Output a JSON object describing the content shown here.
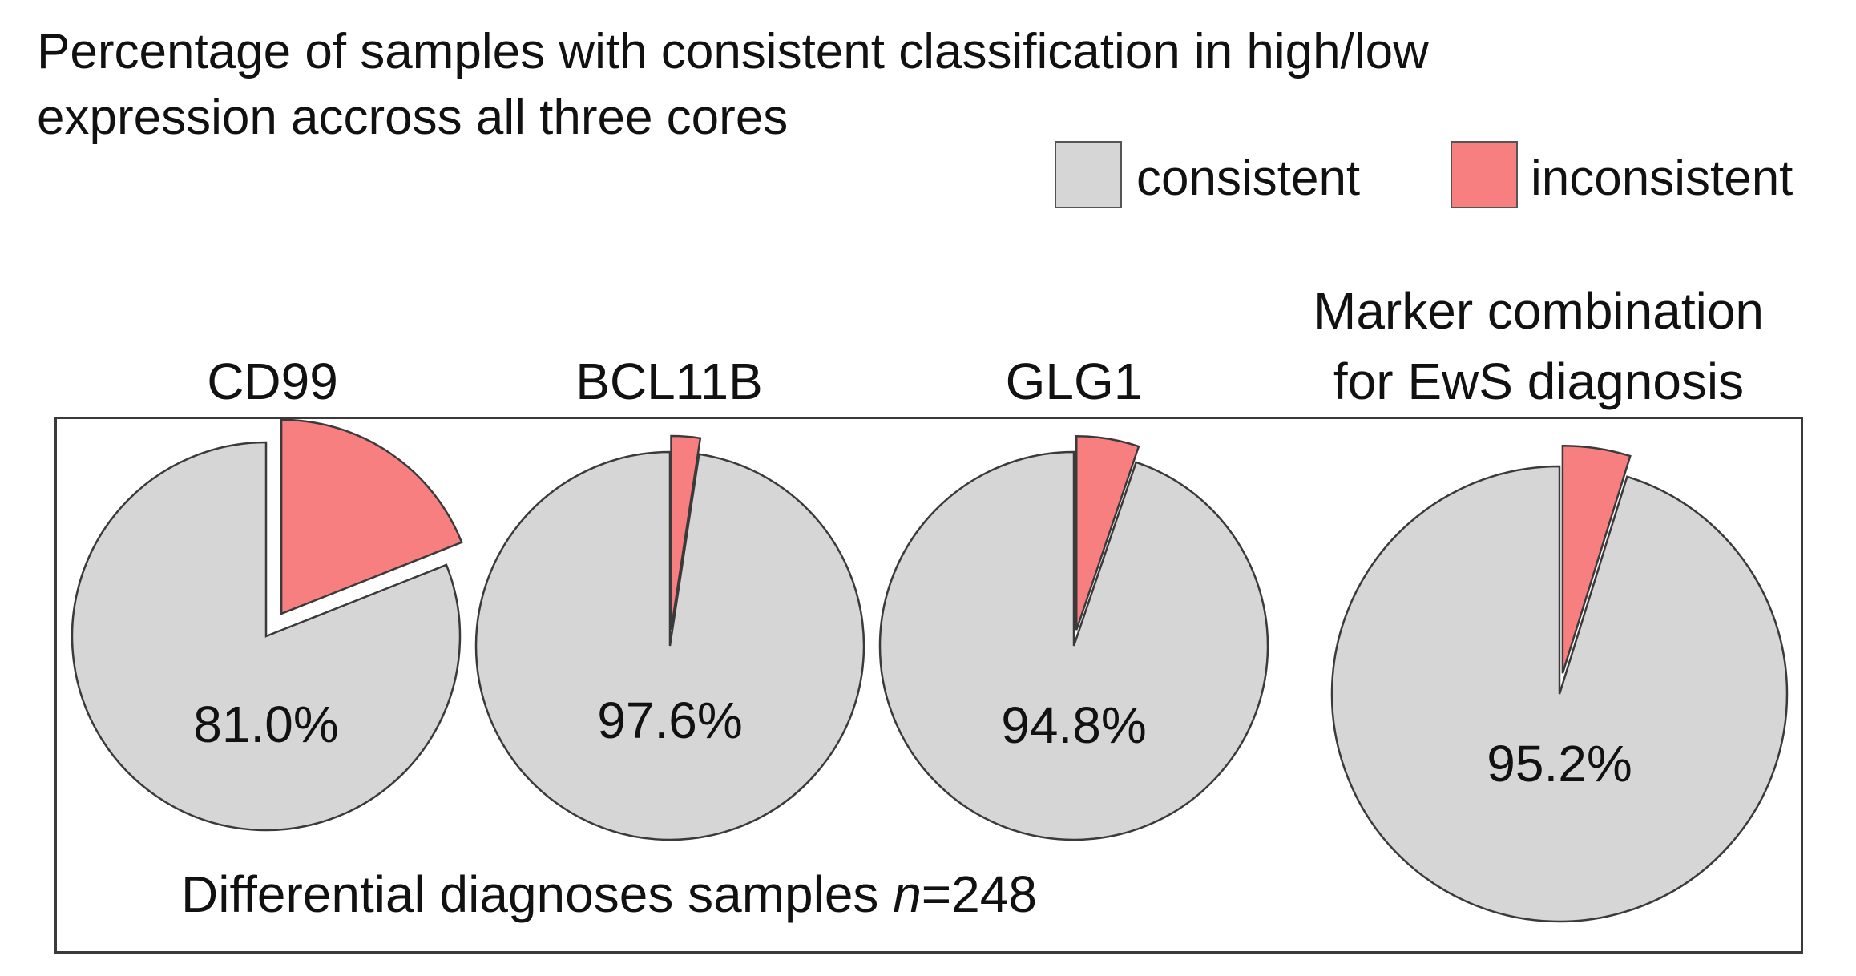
{
  "title": {
    "line1": "Percentage of samples with consistent classification in high/low",
    "line2": "expression accross all three cores"
  },
  "legend": {
    "consistent": "consistent",
    "inconsistent": "inconsistent"
  },
  "colors": {
    "consistent": "#d6d6d6",
    "inconsistent": "#f87f80",
    "outline": "#3a3a3a"
  },
  "footnote": {
    "text": "Differential diagnoses samples ",
    "n_symbol": "n",
    "n_value": "=248"
  },
  "chart_data": {
    "type": "pie",
    "title": "Percentage of samples with consistent classification in high/low expression accross all three cores",
    "legend": [
      "consistent",
      "inconsistent"
    ],
    "legend_position": "top-right",
    "charts": [
      {
        "name": "CD99",
        "title_lines": [
          "CD99"
        ],
        "consistent": 81.0,
        "inconsistent": 19.0,
        "label": "81.0%"
      },
      {
        "name": "BCL11B",
        "title_lines": [
          "BCL11B"
        ],
        "consistent": 97.6,
        "inconsistent": 2.4,
        "label": "97.6%"
      },
      {
        "name": "GLG1",
        "title_lines": [
          "GLG1"
        ],
        "consistent": 94.8,
        "inconsistent": 5.2,
        "label": "94.8%"
      },
      {
        "name": "Marker combination for EwS diagnosis",
        "title_lines": [
          "Marker combination",
          "for EwS diagnosis"
        ],
        "consistent": 95.2,
        "inconsistent": 4.8,
        "label": "95.2%"
      }
    ]
  }
}
